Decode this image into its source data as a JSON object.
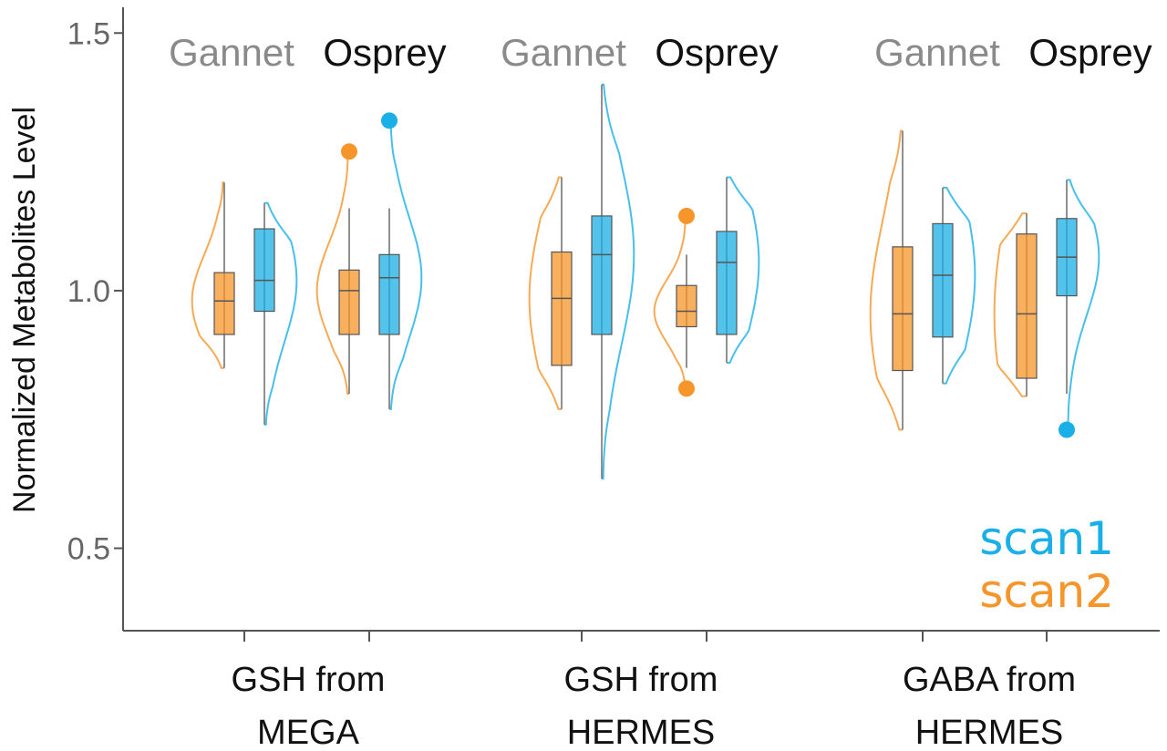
{
  "colors": {
    "scan1": "#1aafe6",
    "scan2": "#f5952a",
    "axis": "#555555",
    "gannet_label": "#8a8a8a",
    "osprey_label": "#111111"
  },
  "chart_data": {
    "type": "violin_box",
    "ylabel": "Normalized Metabolites Level",
    "ylim": [
      0.34,
      1.55
    ],
    "yticks": [
      0.5,
      1.0,
      1.5
    ],
    "ytick_labels": [
      "0.5",
      "1.0",
      "1.5"
    ],
    "grid": false,
    "legend": {
      "placement": "bottom-right",
      "entries": [
        {
          "label": "scan1",
          "color_key": "scan1"
        },
        {
          "label": "scan2",
          "color_key": "scan2"
        }
      ]
    },
    "tool_labels": [
      "Gannet",
      "Osprey"
    ],
    "categories": [
      {
        "line1": "GSH from",
        "line2": "MEGA",
        "groups": [
          {
            "tool": "Gannet",
            "scan2": {
              "q1": 0.915,
              "median": 0.98,
              "q3": 1.035,
              "whisker_low": 0.85,
              "whisker_high": 1.21,
              "violin_min": 0.85,
              "violin_max": 1.21,
              "outliers": []
            },
            "scan1": {
              "q1": 0.96,
              "median": 1.02,
              "q3": 1.12,
              "whisker_low": 0.74,
              "whisker_high": 1.17,
              "violin_min": 0.74,
              "violin_max": 1.17,
              "outliers": []
            }
          },
          {
            "tool": "Osprey",
            "scan2": {
              "q1": 0.915,
              "median": 1.0,
              "q3": 1.04,
              "whisker_low": 0.8,
              "whisker_high": 1.16,
              "violin_min": 0.8,
              "violin_max": 1.27,
              "outliers": [
                1.27
              ]
            },
            "scan1": {
              "q1": 0.915,
              "median": 1.025,
              "q3": 1.07,
              "whisker_low": 0.77,
              "whisker_high": 1.16,
              "violin_min": 0.77,
              "violin_max": 1.33,
              "outliers": [
                1.33
              ]
            }
          }
        ]
      },
      {
        "line1": "GSH from",
        "line2": "HERMES",
        "groups": [
          {
            "tool": "Gannet",
            "scan2": {
              "q1": 0.855,
              "median": 0.985,
              "q3": 1.075,
              "whisker_low": 0.77,
              "whisker_high": 1.22,
              "violin_min": 0.77,
              "violin_max": 1.22,
              "outliers": []
            },
            "scan1": {
              "q1": 0.915,
              "median": 1.07,
              "q3": 1.145,
              "whisker_low": 0.635,
              "whisker_high": 1.4,
              "violin_min": 0.635,
              "violin_max": 1.4,
              "outliers": []
            }
          },
          {
            "tool": "Osprey",
            "scan2": {
              "q1": 0.93,
              "median": 0.96,
              "q3": 1.01,
              "whisker_low": 0.85,
              "whisker_high": 1.07,
              "violin_min": 0.81,
              "violin_max": 1.145,
              "outliers": [
                0.81,
                1.145
              ]
            },
            "scan1": {
              "q1": 0.915,
              "median": 1.055,
              "q3": 1.115,
              "whisker_low": 0.86,
              "whisker_high": 1.22,
              "violin_min": 0.86,
              "violin_max": 1.22,
              "outliers": []
            }
          }
        ]
      },
      {
        "line1": "GABA from",
        "line2": "HERMES",
        "groups": [
          {
            "tool": "Gannet",
            "scan2": {
              "q1": 0.845,
              "median": 0.955,
              "q3": 1.085,
              "whisker_low": 0.73,
              "whisker_high": 1.31,
              "violin_min": 0.73,
              "violin_max": 1.31,
              "outliers": []
            },
            "scan1": {
              "q1": 0.91,
              "median": 1.03,
              "q3": 1.13,
              "whisker_low": 0.82,
              "whisker_high": 1.2,
              "violin_min": 0.82,
              "violin_max": 1.2,
              "outliers": []
            }
          },
          {
            "tool": "Osprey",
            "scan2": {
              "q1": 0.83,
              "median": 0.955,
              "q3": 1.11,
              "whisker_low": 0.795,
              "whisker_high": 1.15,
              "violin_min": 0.795,
              "violin_max": 1.15,
              "outliers": []
            },
            "scan1": {
              "q1": 0.99,
              "median": 1.065,
              "q3": 1.14,
              "whisker_low": 0.8,
              "whisker_high": 1.215,
              "violin_min": 0.73,
              "violin_max": 1.215,
              "outliers": [
                0.73
              ]
            }
          }
        ]
      }
    ]
  }
}
